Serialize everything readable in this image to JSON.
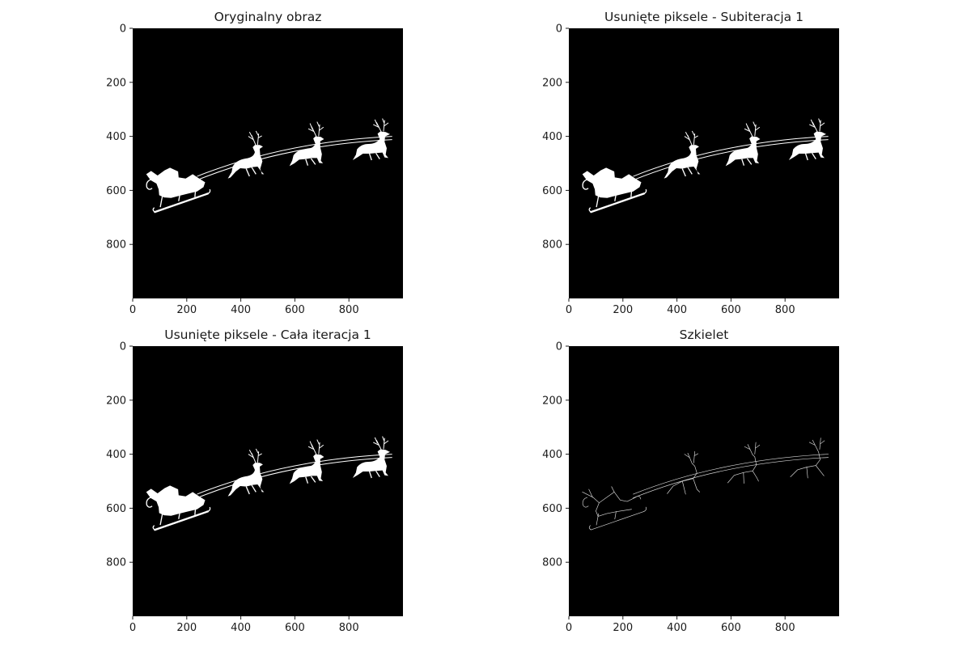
{
  "figure": {
    "axis_ticks": [
      "0",
      "200",
      "400",
      "600",
      "800"
    ],
    "axis_tick_values": [
      0,
      200,
      400,
      600,
      800
    ],
    "image_extent": [
      0,
      1000
    ],
    "panels": [
      {
        "title": "Oryginalny obraz",
        "rendering": "filled"
      },
      {
        "title": "Usunięte piksele - Subiteracja 1",
        "rendering": "filled"
      },
      {
        "title": "Usunięte piksele - Cała iteracja 1",
        "rendering": "filled"
      },
      {
        "title": "Szkielet",
        "rendering": "skeleton"
      }
    ],
    "colors": {
      "background": "#000000",
      "foreground": "#ffffff"
    }
  }
}
